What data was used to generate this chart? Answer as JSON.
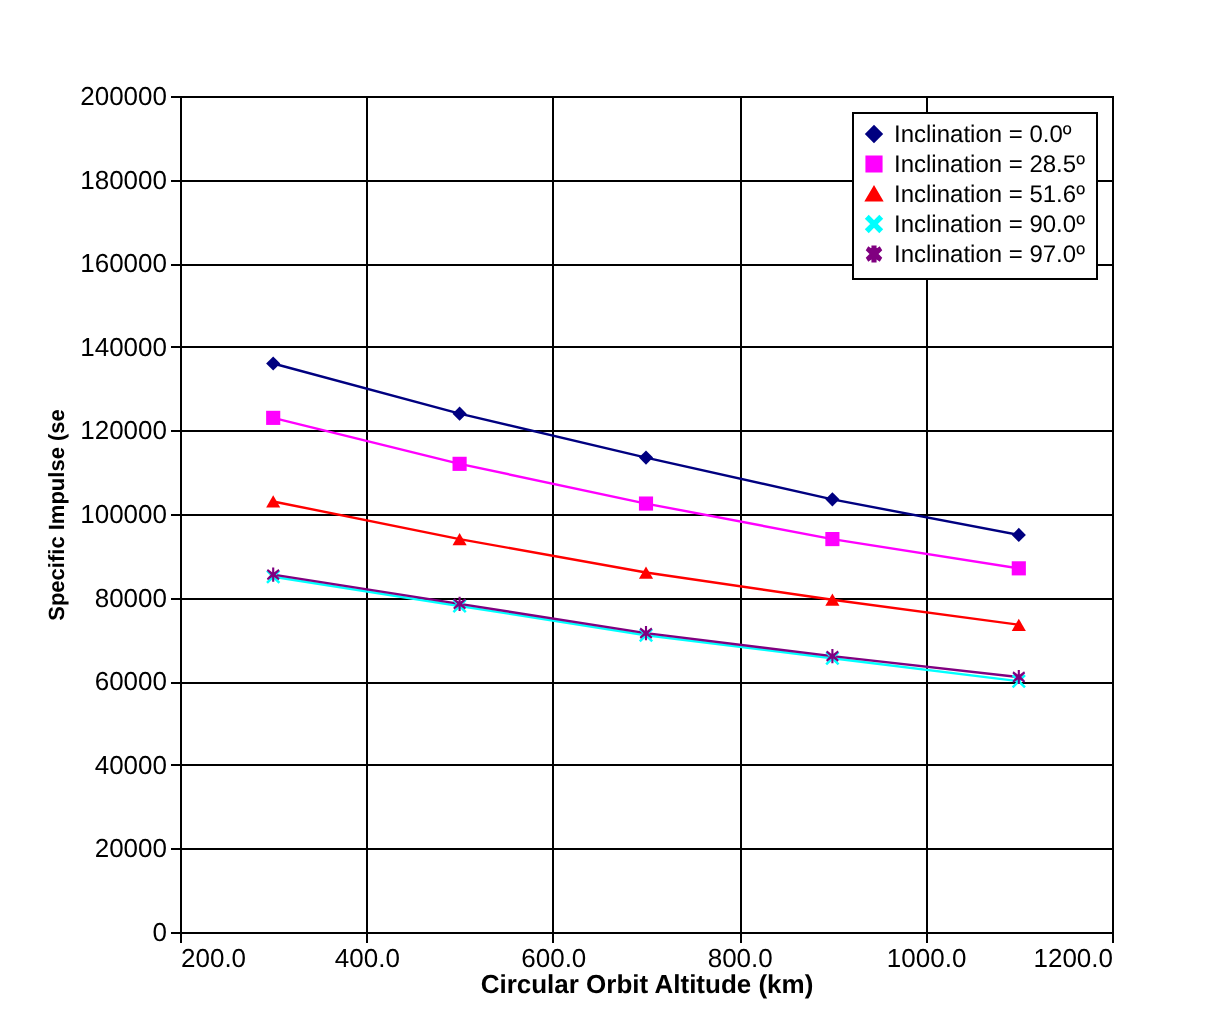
{
  "chart_data": {
    "type": "line",
    "xlabel": "Circular Orbit Altitude (km)",
    "ylabel": "Specific Impulse (se",
    "x": [
      300,
      500,
      700,
      900,
      1100
    ],
    "series": [
      {
        "name": "Inclination = 0.0º",
        "color": "#000080",
        "marker": "diamond",
        "values": [
          136000,
          124000,
          113500,
          103500,
          95000
        ]
      },
      {
        "name": "Inclination = 28.5º",
        "color": "#ff00ff",
        "marker": "square",
        "values": [
          123000,
          112000,
          102500,
          94000,
          87000
        ]
      },
      {
        "name": "Inclination = 51.6º",
        "color": "#ff0000",
        "marker": "triangle",
        "values": [
          103000,
          94000,
          86000,
          79500,
          73500
        ]
      },
      {
        "name": "Inclination = 90.0º",
        "color": "#00ffff",
        "marker": "cross",
        "values": [
          85000,
          78000,
          71000,
          65500,
          60000
        ]
      },
      {
        "name": "Inclination = 97.0º",
        "color": "#800080",
        "marker": "star",
        "values": [
          85500,
          78500,
          71500,
          66000,
          61000
        ]
      }
    ],
    "xlim": [
      200,
      1200
    ],
    "xticks": [
      {
        "value": 200,
        "label": "200.0"
      },
      {
        "value": 400,
        "label": "400.0"
      },
      {
        "value": 600,
        "label": "600.0"
      },
      {
        "value": 800,
        "label": "800.0"
      },
      {
        "value": 1000,
        "label": "1000.0"
      },
      {
        "value": 1200,
        "label": "1200.0"
      }
    ],
    "ylim": [
      0,
      200000
    ],
    "yticks": [
      0,
      20000,
      40000,
      60000,
      80000,
      100000,
      120000,
      140000,
      160000,
      180000,
      200000
    ],
    "grid": true,
    "legend": "top right",
    "line_style": "solid"
  }
}
